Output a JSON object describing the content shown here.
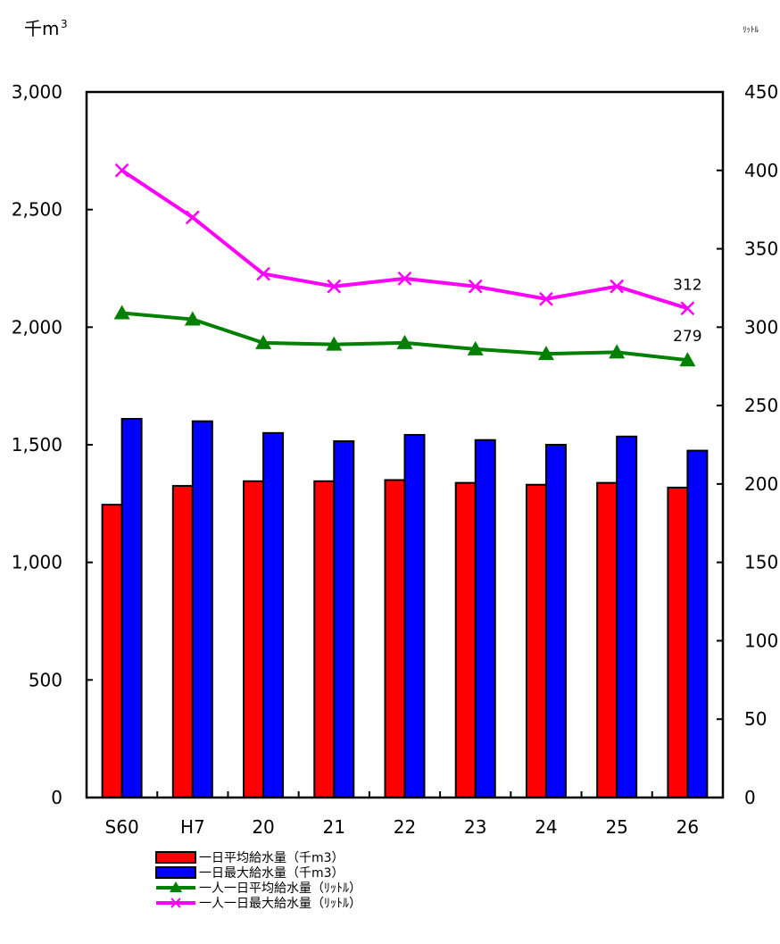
{
  "chart_data": {
    "type": "bar",
    "categories": [
      "S60",
      "H7",
      "20",
      "21",
      "22",
      "23",
      "24",
      "25",
      "26"
    ],
    "left_axis": {
      "unit_label": "千m",
      "unit_superscript": "3",
      "ylim": [
        0,
        3000
      ],
      "ticks": [
        "0",
        "500",
        "1,000",
        "1,500",
        "2,000",
        "2,500",
        "3,000"
      ],
      "tick_values": [
        0,
        500,
        1000,
        1500,
        2000,
        2500,
        3000
      ]
    },
    "right_axis": {
      "unit_label": "ﾘｯﾄﾙ",
      "ylim": [
        0,
        450
      ],
      "ticks": [
        "0",
        "50",
        "100",
        "150",
        "200",
        "250",
        "300",
        "350",
        "400",
        "450"
      ],
      "tick_values": [
        0,
        50,
        100,
        150,
        200,
        250,
        300,
        350,
        400,
        450
      ]
    },
    "series": [
      {
        "name": "一日平均給水量（千m3）",
        "kind": "bar",
        "axis": "left",
        "color": "#ff0000",
        "values": [
          1245,
          1325,
          1345,
          1345,
          1350,
          1338,
          1330,
          1338,
          1318
        ]
      },
      {
        "name": "一日最大給水量（千m3）",
        "kind": "bar",
        "axis": "left",
        "color": "#0000ff",
        "values": [
          1610,
          1600,
          1550,
          1515,
          1542,
          1520,
          1500,
          1535,
          1475
        ]
      },
      {
        "name": "一人一日平均給水量（ﾘｯﾄﾙ）",
        "kind": "line",
        "marker": "triangle",
        "axis": "right",
        "color": "#008000",
        "values": [
          309,
          305,
          290,
          289,
          290,
          286,
          283,
          284,
          279
        ]
      },
      {
        "name": "一人一日最大給水量（ﾘｯﾄﾙ）",
        "kind": "line",
        "marker": "x",
        "axis": "right",
        "color": "#ff00ff",
        "values": [
          400,
          370,
          334,
          326,
          331,
          326,
          318,
          326,
          312
        ]
      }
    ],
    "annotations": [
      {
        "text": "312",
        "series": 3,
        "index": 8
      },
      {
        "text": "279",
        "series": 2,
        "index": 8
      }
    ],
    "legend_position": "bottom-center",
    "grid": false
  }
}
